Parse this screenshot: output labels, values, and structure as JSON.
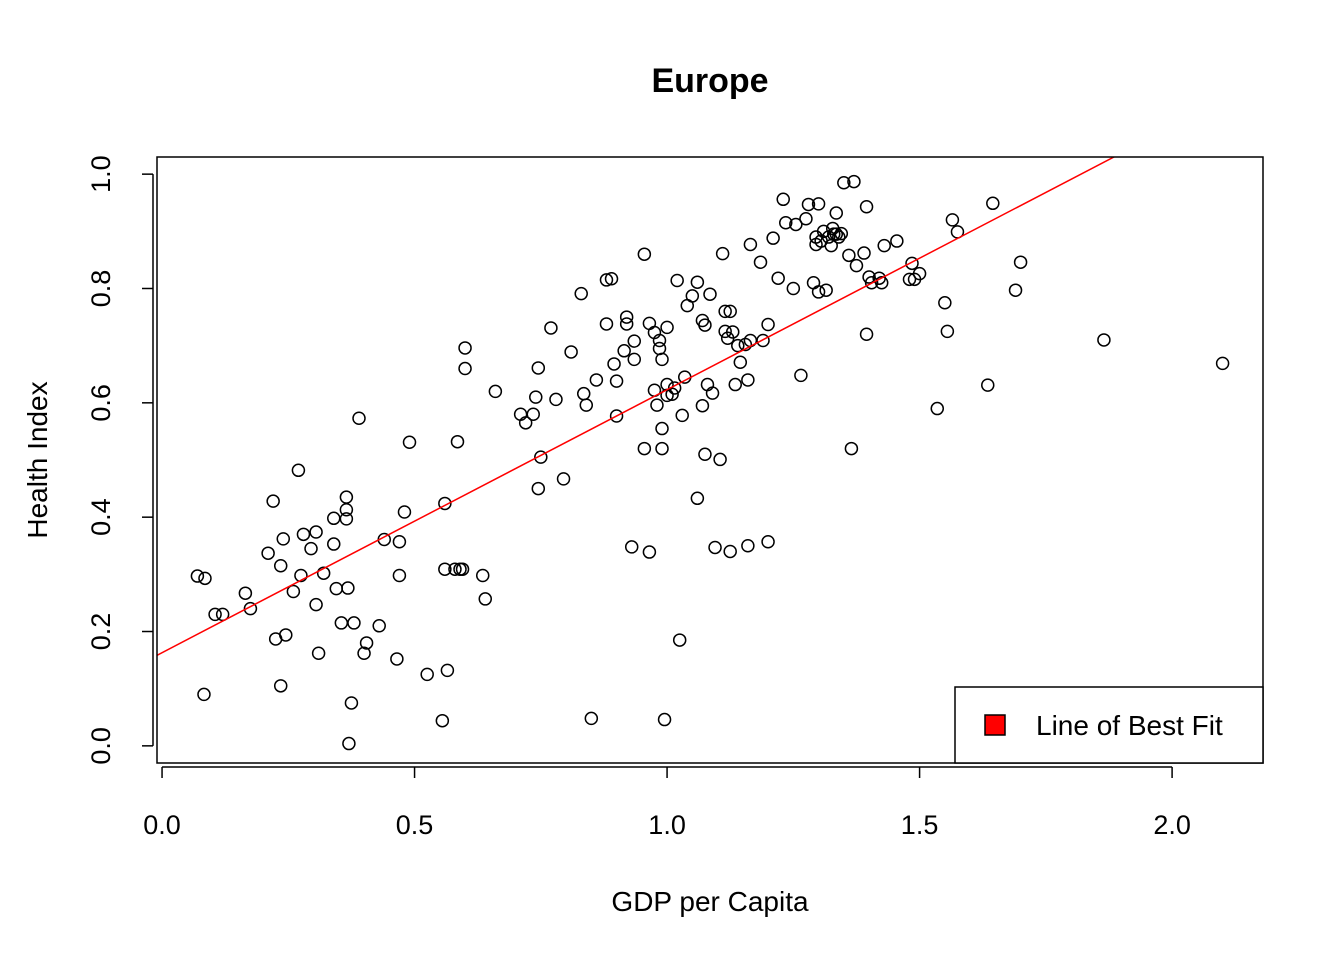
{
  "chart_data": {
    "type": "scatter",
    "title": "Europe",
    "xlabel": "GDP per Capita",
    "ylabel": "Health Index",
    "xlim": [
      -0.01,
      2.18
    ],
    "ylim": [
      -0.03,
      1.03
    ],
    "x_ticks": [
      0.0,
      0.5,
      1.0,
      1.5,
      2.0
    ],
    "x_tick_labels": [
      "0.0",
      "0.5",
      "1.0",
      "1.5",
      "2.0"
    ],
    "y_ticks": [
      0.0,
      0.2,
      0.4,
      0.6,
      0.8,
      1.0
    ],
    "y_tick_labels": [
      "0.0",
      "0.2",
      "0.4",
      "0.6",
      "0.8",
      "1.0"
    ],
    "grid": false,
    "legend": {
      "position": "bottom-right",
      "entries": [
        {
          "label": "Line of Best Fit",
          "color": "#ff0000"
        }
      ]
    },
    "fit_line": {
      "intercept": 0.163,
      "slope": 0.46,
      "color": "#ff0000"
    },
    "point_color": "#000000",
    "points": [
      [
        0.07,
        0.297
      ],
      [
        0.085,
        0.293
      ],
      [
        0.083,
        0.09
      ],
      [
        0.105,
        0.23
      ],
      [
        0.12,
        0.23
      ],
      [
        0.165,
        0.267
      ],
      [
        0.175,
        0.24
      ],
      [
        0.21,
        0.337
      ],
      [
        0.22,
        0.428
      ],
      [
        0.225,
        0.187
      ],
      [
        0.235,
        0.315
      ],
      [
        0.235,
        0.105
      ],
      [
        0.24,
        0.362
      ],
      [
        0.245,
        0.194
      ],
      [
        0.26,
        0.27
      ],
      [
        0.27,
        0.482
      ],
      [
        0.275,
        0.298
      ],
      [
        0.28,
        0.37
      ],
      [
        0.295,
        0.345
      ],
      [
        0.305,
        0.374
      ],
      [
        0.305,
        0.247
      ],
      [
        0.31,
        0.162
      ],
      [
        0.32,
        0.302
      ],
      [
        0.34,
        0.398
      ],
      [
        0.34,
        0.353
      ],
      [
        0.345,
        0.275
      ],
      [
        0.355,
        0.215
      ],
      [
        0.365,
        0.435
      ],
      [
        0.365,
        0.413
      ],
      [
        0.365,
        0.397
      ],
      [
        0.368,
        0.276
      ],
      [
        0.37,
        0.004
      ],
      [
        0.375,
        0.075
      ],
      [
        0.38,
        0.215
      ],
      [
        0.39,
        0.573
      ],
      [
        0.4,
        0.162
      ],
      [
        0.405,
        0.18
      ],
      [
        0.43,
        0.21
      ],
      [
        0.44,
        0.361
      ],
      [
        0.465,
        0.152
      ],
      [
        0.47,
        0.357
      ],
      [
        0.47,
        0.298
      ],
      [
        0.48,
        0.409
      ],
      [
        0.49,
        0.531
      ],
      [
        0.525,
        0.125
      ],
      [
        0.555,
        0.044
      ],
      [
        0.56,
        0.424
      ],
      [
        0.56,
        0.309
      ],
      [
        0.565,
        0.132
      ],
      [
        0.58,
        0.309
      ],
      [
        0.585,
        0.532
      ],
      [
        0.59,
        0.309
      ],
      [
        0.595,
        0.309
      ],
      [
        0.6,
        0.696
      ],
      [
        0.6,
        0.66
      ],
      [
        0.635,
        0.298
      ],
      [
        0.64,
        0.257
      ],
      [
        0.66,
        0.62
      ],
      [
        0.71,
        0.58
      ],
      [
        0.72,
        0.565
      ],
      [
        0.735,
        0.58
      ],
      [
        0.74,
        0.61
      ],
      [
        0.745,
        0.45
      ],
      [
        0.745,
        0.661
      ],
      [
        0.75,
        0.505
      ],
      [
        0.77,
        0.731
      ],
      [
        0.78,
        0.606
      ],
      [
        0.795,
        0.467
      ],
      [
        0.81,
        0.689
      ],
      [
        0.83,
        0.791
      ],
      [
        0.835,
        0.616
      ],
      [
        0.84,
        0.596
      ],
      [
        0.85,
        0.048
      ],
      [
        0.86,
        0.64
      ],
      [
        0.88,
        0.815
      ],
      [
        0.88,
        0.738
      ],
      [
        0.89,
        0.817
      ],
      [
        0.895,
        0.668
      ],
      [
        0.9,
        0.577
      ],
      [
        0.9,
        0.638
      ],
      [
        0.915,
        0.691
      ],
      [
        0.92,
        0.75
      ],
      [
        0.92,
        0.738
      ],
      [
        0.93,
        0.348
      ],
      [
        0.935,
        0.708
      ],
      [
        0.935,
        0.676
      ],
      [
        0.955,
        0.52
      ],
      [
        0.955,
        0.86
      ],
      [
        0.965,
        0.339
      ],
      [
        0.965,
        0.739
      ],
      [
        0.975,
        0.622
      ],
      [
        0.975,
        0.723
      ],
      [
        0.98,
        0.596
      ],
      [
        0.985,
        0.709
      ],
      [
        0.985,
        0.695
      ],
      [
        0.99,
        0.676
      ],
      [
        0.99,
        0.555
      ],
      [
        0.99,
        0.52
      ],
      [
        0.995,
        0.046
      ],
      [
        1.0,
        0.732
      ],
      [
        1.0,
        0.632
      ],
      [
        1.0,
        0.613
      ],
      [
        1.01,
        0.615
      ],
      [
        1.015,
        0.626
      ],
      [
        1.02,
        0.814
      ],
      [
        1.025,
        0.185
      ],
      [
        1.03,
        0.578
      ],
      [
        1.035,
        0.645
      ],
      [
        1.04,
        0.77
      ],
      [
        1.05,
        0.787
      ],
      [
        1.06,
        0.811
      ],
      [
        1.06,
        0.433
      ],
      [
        1.07,
        0.595
      ],
      [
        1.07,
        0.744
      ],
      [
        1.075,
        0.736
      ],
      [
        1.075,
        0.51
      ],
      [
        1.08,
        0.632
      ],
      [
        1.085,
        0.79
      ],
      [
        1.09,
        0.617
      ],
      [
        1.095,
        0.347
      ],
      [
        1.105,
        0.501
      ],
      [
        1.11,
        0.861
      ],
      [
        1.115,
        0.76
      ],
      [
        1.115,
        0.725
      ],
      [
        1.12,
        0.713
      ],
      [
        1.125,
        0.34
      ],
      [
        1.125,
        0.76
      ],
      [
        1.13,
        0.724
      ],
      [
        1.135,
        0.632
      ],
      [
        1.14,
        0.7
      ],
      [
        1.145,
        0.671
      ],
      [
        1.155,
        0.702
      ],
      [
        1.16,
        0.64
      ],
      [
        1.16,
        0.35
      ],
      [
        1.165,
        0.877
      ],
      [
        1.165,
        0.709
      ],
      [
        1.185,
        0.846
      ],
      [
        1.19,
        0.709
      ],
      [
        1.2,
        0.357
      ],
      [
        1.2,
        0.737
      ],
      [
        1.21,
        0.888
      ],
      [
        1.22,
        0.818
      ],
      [
        1.23,
        0.956
      ],
      [
        1.235,
        0.915
      ],
      [
        1.25,
        0.8
      ],
      [
        1.255,
        0.912
      ],
      [
        1.265,
        0.648
      ],
      [
        1.275,
        0.922
      ],
      [
        1.28,
        0.947
      ],
      [
        1.29,
        0.81
      ],
      [
        1.295,
        0.877
      ],
      [
        1.295,
        0.89
      ],
      [
        1.3,
        0.794
      ],
      [
        1.3,
        0.948
      ],
      [
        1.305,
        0.883
      ],
      [
        1.31,
        0.9
      ],
      [
        1.315,
        0.797
      ],
      [
        1.32,
        0.89
      ],
      [
        1.325,
        0.875
      ],
      [
        1.328,
        0.905
      ],
      [
        1.33,
        0.895
      ],
      [
        1.335,
        0.932
      ],
      [
        1.335,
        0.895
      ],
      [
        1.34,
        0.89
      ],
      [
        1.345,
        0.896
      ],
      [
        1.35,
        0.985
      ],
      [
        1.36,
        0.858
      ],
      [
        1.365,
        0.52
      ],
      [
        1.37,
        0.987
      ],
      [
        1.375,
        0.84
      ],
      [
        1.39,
        0.862
      ],
      [
        1.395,
        0.943
      ],
      [
        1.395,
        0.72
      ],
      [
        1.4,
        0.82
      ],
      [
        1.405,
        0.81
      ],
      [
        1.42,
        0.818
      ],
      [
        1.425,
        0.81
      ],
      [
        1.43,
        0.875
      ],
      [
        1.455,
        0.883
      ],
      [
        1.48,
        0.816
      ],
      [
        1.485,
        0.844
      ],
      [
        1.49,
        0.816
      ],
      [
        1.5,
        0.826
      ],
      [
        1.535,
        0.59
      ],
      [
        1.55,
        0.775
      ],
      [
        1.555,
        0.725
      ],
      [
        1.565,
        0.92
      ],
      [
        1.575,
        0.899
      ],
      [
        1.635,
        0.631
      ],
      [
        1.645,
        0.949
      ],
      [
        1.69,
        0.797
      ],
      [
        1.7,
        0.846
      ],
      [
        1.865,
        0.71
      ],
      [
        2.1,
        0.669
      ]
    ]
  }
}
